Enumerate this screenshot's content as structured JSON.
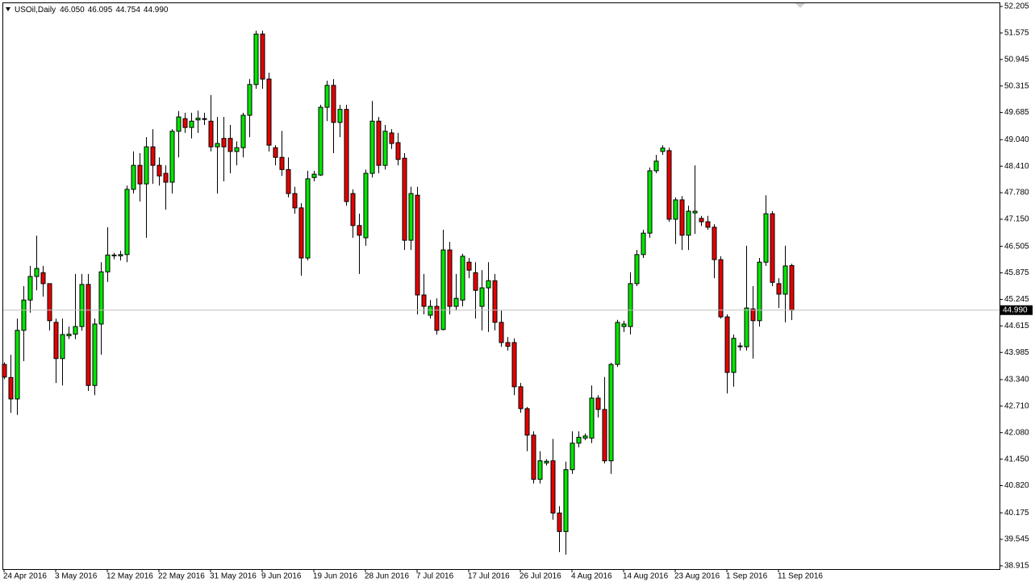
{
  "chart_data": {
    "type": "candlestick",
    "title": "USOil,Daily",
    "title_values": [
      "46.050",
      "46.095",
      "44.754",
      "44.990"
    ],
    "categories": [
      "24 Apr 2016",
      null,
      null,
      null,
      null,
      null,
      null,
      null,
      "3 May 2016",
      null,
      null,
      null,
      null,
      null,
      null,
      null,
      "12 May 2016",
      null,
      null,
      null,
      null,
      null,
      null,
      null,
      "22 May 2016",
      null,
      null,
      null,
      null,
      null,
      null,
      null,
      "31 May 2016",
      null,
      null,
      null,
      null,
      null,
      null,
      null,
      "9 Jun 2016",
      null,
      null,
      null,
      null,
      null,
      null,
      null,
      "19 Jun 2016",
      null,
      null,
      null,
      null,
      null,
      null,
      null,
      "28 Jun 2016",
      null,
      null,
      null,
      null,
      null,
      null,
      null,
      "7 Jul 2016",
      null,
      null,
      null,
      null,
      null,
      null,
      null,
      "17 Jul 2016",
      null,
      null,
      null,
      null,
      null,
      null,
      null,
      "26 Jul 2016",
      null,
      null,
      null,
      null,
      null,
      null,
      null,
      "4 Aug 2016",
      null,
      null,
      null,
      null,
      null,
      null,
      null,
      "14 Aug 2016",
      null,
      null,
      null,
      null,
      null,
      null,
      null,
      "23 Aug 2016",
      null,
      null,
      null,
      null,
      null,
      null,
      null,
      "1 Sep 2016",
      null,
      null,
      null,
      null,
      null,
      null,
      null,
      "11 Sep 2016",
      null,
      null
    ],
    "open": [
      43.7,
      43.39,
      42.88,
      44.51,
      45.23,
      45.79,
      45.88,
      45.62,
      44.7,
      43.84,
      44.38,
      44.42,
      44.6,
      45.6,
      43.2,
      44.66,
      45.9,
      46.28,
      46.28,
      46.31,
      47.86,
      48.43,
      47.99,
      48.87,
      48.43,
      48.24,
      48.03,
      49.24,
      49.54,
      49.33,
      49.51,
      49.54,
      49.48,
      48.87,
      49.07,
      49.07,
      48.76,
      48.85,
      49.62,
      50.35,
      51.55,
      50.48,
      48.85,
      48.62,
      48.33,
      47.76,
      47.42,
      46.23,
      48.14,
      48.2,
      49.81,
      50.33,
      49.45,
      49.76,
      47.76,
      47.0,
      46.71,
      48.24,
      49.48,
      48.43,
      49.2,
      48.97,
      48.6,
      46.65,
      47.72,
      45.35,
      44.87,
      45.08,
      44.53,
      46.42,
      45.08,
      45.23,
      46.13,
      45.88,
      45.08,
      45.52,
      45.69,
      44.7,
      44.22,
      44.22,
      43.17,
      42.65,
      42.02,
      40.97,
      41.36,
      41.41,
      40.17,
      39.73,
      41.2,
      41.83,
      41.95,
      41.95,
      42.9,
      42.63,
      41.41,
      43.7,
      44.6,
      44.6,
      45.62,
      46.31,
      46.82,
      48.3,
      48.76,
      48.78,
      47.15,
      47.61,
      46.77,
      47.3,
      47.17,
      47.09,
      46.96,
      46.19,
      44.83,
      43.51,
      44.12,
      44.12,
      45.02,
      44.74,
      46.13,
      47.28,
      45.62,
      45.37,
      46.05
    ],
    "high": [
      43.75,
      43.93,
      44.79,
      45.56,
      46.04,
      46.76,
      46.04,
      45.62,
      44.79,
      44.79,
      44.6,
      45.85,
      45.85,
      45.85,
      44.79,
      46.13,
      46.96,
      46.35,
      46.4,
      47.95,
      48.76,
      48.72,
      49.1,
      49.29,
      48.62,
      48.43,
      49.29,
      49.72,
      49.68,
      49.68,
      49.73,
      49.68,
      50.1,
      49.58,
      49.58,
      49.39,
      49.0,
      49.68,
      50.48,
      51.63,
      51.63,
      50.63,
      48.91,
      49.25,
      48.62,
      47.92,
      47.53,
      48.3,
      48.3,
      49.87,
      50.44,
      50.48,
      49.87,
      49.87,
      47.86,
      47.28,
      48.33,
      49.96,
      49.58,
      49.39,
      49.29,
      49.2,
      48.72,
      47.92,
      47.92,
      45.85,
      45.23,
      45.27,
      46.9,
      46.61,
      45.85,
      46.33,
      46.23,
      46.13,
      45.94,
      46.13,
      45.85,
      44.98,
      44.35,
      44.32,
      43.26,
      42.69,
      42.11,
      41.64,
      41.45,
      41.93,
      40.33,
      41.39,
      42.11,
      42.11,
      42.06,
      43.2,
      42.97,
      43.4,
      43.74,
      44.76,
      44.74,
      45.89,
      46.42,
      46.9,
      48.38,
      48.68,
      48.91,
      48.85,
      47.67,
      47.7,
      47.47,
      48.43,
      47.23,
      47.23,
      47.03,
      46.27,
      44.89,
      44.41,
      44.22,
      46.52,
      45.56,
      46.23,
      47.72,
      47.34,
      45.75,
      46.52,
      46.095
    ],
    "low": [
      43.35,
      42.55,
      42.5,
      43.78,
      44.93,
      45.46,
      45.31,
      44.51,
      43.26,
      43.2,
      44.3,
      44.3,
      44.5,
      43.07,
      42.97,
      43.93,
      45.66,
      46.2,
      46.17,
      46.13,
      47.76,
      47.57,
      46.71,
      47.99,
      47.95,
      47.38,
      47.76,
      48.62,
      49.2,
      49.07,
      49.2,
      49.39,
      48.76,
      47.76,
      48.05,
      48.24,
      48.43,
      48.62,
      49.1,
      50.25,
      50.25,
      48.76,
      48.43,
      48.18,
      47.67,
      47.28,
      45.81,
      46.17,
      48.05,
      48.18,
      49.48,
      48.72,
      49.1,
      47.47,
      46.71,
      45.85,
      46.52,
      48.14,
      48.24,
      48.33,
      48.82,
      48.43,
      46.42,
      46.42,
      44.89,
      44.89,
      44.79,
      44.41,
      44.51,
      44.89,
      44.98,
      45.08,
      45.75,
      44.79,
      44.51,
      44.47,
      44.51,
      44.12,
      44.03,
      42.97,
      42.55,
      41.64,
      40.87,
      40.87,
      41.3,
      40.01,
      39.24,
      39.18,
      41.1,
      41.73,
      41.9,
      41.83,
      42.44,
      41.35,
      41.1,
      43.64,
      44.47,
      44.41,
      45.56,
      46.23,
      46.71,
      48.24,
      48.68,
      47.09,
      46.56,
      46.42,
      46.42,
      46.8,
      46.99,
      46.9,
      45.75,
      44.79,
      43.01,
      43.17,
      44.03,
      44.03,
      43.84,
      44.6,
      46.04,
      45.56,
      45.04,
      44.7,
      44.754
    ],
    "close": [
      43.4,
      42.88,
      44.51,
      45.23,
      45.79,
      45.98,
      45.62,
      44.74,
      43.84,
      44.41,
      44.42,
      44.6,
      45.6,
      43.2,
      44.66,
      45.9,
      46.3,
      46.3,
      46.31,
      47.86,
      48.43,
      47.99,
      48.87,
      48.43,
      48.18,
      48.03,
      49.24,
      49.58,
      49.33,
      49.48,
      49.55,
      49.53,
      48.87,
      48.95,
      48.87,
      48.76,
      48.85,
      49.62,
      50.35,
      51.55,
      50.48,
      48.91,
      48.62,
      48.33,
      47.76,
      47.42,
      46.23,
      48.11,
      48.22,
      49.81,
      50.33,
      49.45,
      49.76,
      47.57,
      47.0,
      46.77,
      48.24,
      49.48,
      48.43,
      49.24,
      48.95,
      48.57,
      46.65,
      47.76,
      45.35,
      45.08,
      45.08,
      44.51,
      46.42,
      45.08,
      45.27,
      46.27,
      45.94,
      45.46,
      45.52,
      45.69,
      44.7,
      44.22,
      44.13,
      43.17,
      42.65,
      42.02,
      40.97,
      41.41,
      41.4,
      40.17,
      39.73,
      41.2,
      41.83,
      41.97,
      42.0,
      42.9,
      42.63,
      41.41,
      43.7,
      44.7,
      44.66,
      45.62,
      46.31,
      46.82,
      48.3,
      48.53,
      48.84,
      47.15,
      47.61,
      46.77,
      47.34,
      47.34,
      47.09,
      46.96,
      46.19,
      44.83,
      43.51,
      44.32,
      44.14,
      45.04,
      44.74,
      46.13,
      47.28,
      45.65,
      45.37,
      46.04,
      44.99
    ],
    "up_color": "#00e600",
    "down_color": "#e60000",
    "ylim": [
      38.838,
      52.282
    ],
    "yticks": [
      52.205,
      51.575,
      50.945,
      50.315,
      49.685,
      {
        "value": 49.04,
        "label": "49.040"
      },
      {
        "value": 48.41,
        "label": "48.410"
      },
      {
        "value": 47.78,
        "label": "47.780"
      },
      {
        "value": 47.15,
        "label": "47.150"
      },
      46.505,
      45.875,
      45.245,
      44.615,
      43.985,
      {
        "value": 43.34,
        "label": "43.340"
      },
      {
        "value": 42.71,
        "label": "42.710"
      },
      {
        "value": 42.08,
        "label": "42.080"
      },
      {
        "value": 41.45,
        "label": "41.450"
      },
      {
        "value": 40.82,
        "label": "40.820"
      },
      40.175,
      39.545,
      38.915
    ],
    "current_price": {
      "value": 44.99,
      "label": "44.990"
    }
  }
}
